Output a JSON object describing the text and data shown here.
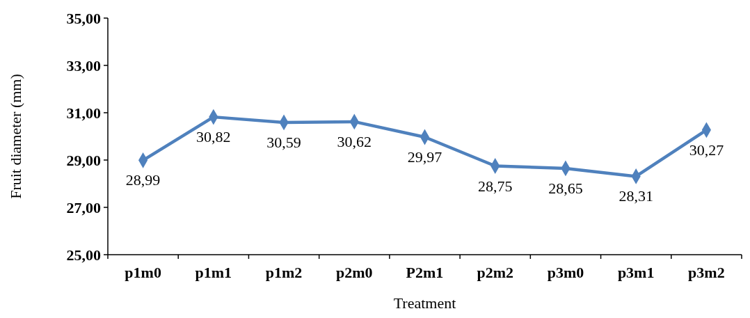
{
  "chart_data": {
    "type": "line",
    "xlabel": "Treatment",
    "ylabel": "Fruit diameter (mm)",
    "categories": [
      "p1m0",
      "p1m1",
      "p1m2",
      "p2m0",
      "P2m1",
      "p2m2",
      "p3m0",
      "p3m1",
      "p3m2"
    ],
    "series": [
      {
        "color": "#4f81bd",
        "values": [
          28.99,
          30.82,
          30.59,
          30.62,
          29.97,
          28.75,
          28.65,
          28.31,
          30.27
        ],
        "value_labels": [
          "28,99",
          "30,82",
          "30,59",
          "30,62",
          "29,97",
          "28,75",
          "28,65",
          "28,31",
          "30,27"
        ]
      }
    ],
    "ylim": [
      25,
      35
    ],
    "yticks": [
      {
        "value": 25,
        "label": "25,00"
      },
      {
        "value": 27,
        "label": "27,00"
      },
      {
        "value": 29,
        "label": "29,00"
      },
      {
        "value": 31,
        "label": "31,00"
      },
      {
        "value": 33,
        "label": "33,00"
      },
      {
        "value": 35,
        "label": "35,00"
      }
    ],
    "marker": "diamond",
    "line_style": "solid"
  }
}
